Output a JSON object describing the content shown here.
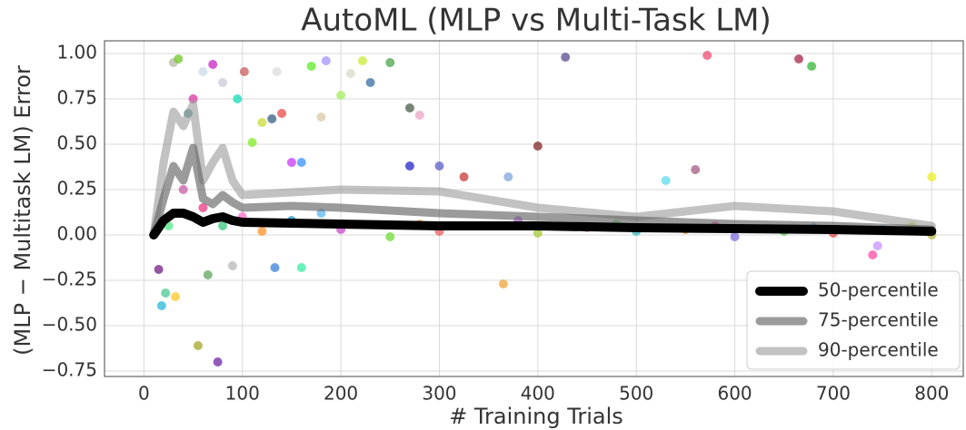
{
  "chart_data": {
    "type": "line",
    "title": "AutoML (MLP vs Multi-Task LM)",
    "xlabel": "# Training Trials",
    "ylabel": "(MLP − Multitask LM) Error",
    "xlim": [
      -40,
      832
    ],
    "ylim": [
      -0.78,
      1.07
    ],
    "xticks": [
      0,
      100,
      200,
      300,
      400,
      500,
      600,
      700,
      800
    ],
    "yticks": [
      {
        "value": 1,
        "label": "1.00"
      },
      {
        "value": 0.75,
        "label": "0.75"
      },
      {
        "value": 0.5,
        "label": "0.50"
      },
      {
        "value": 0.25,
        "label": "0.25"
      },
      {
        "value": 0,
        "label": "0.00"
      },
      {
        "value": -0.25,
        "label": "−0.25"
      },
      {
        "value": -0.5,
        "label": "−0.50"
      },
      {
        "value": -0.75,
        "label": "−0.75"
      }
    ],
    "grid": true,
    "legend": "lower right",
    "points": {
      "x": [
        15,
        18,
        22,
        32,
        30,
        35,
        45,
        50,
        55,
        60,
        70,
        75,
        80,
        95,
        102,
        120,
        130,
        135,
        140,
        150,
        160,
        170,
        180,
        185,
        200,
        210,
        222,
        230,
        250,
        270,
        280,
        270,
        300,
        325,
        370,
        365,
        400,
        428,
        530,
        560,
        572,
        665,
        678,
        800,
        740,
        745,
        133,
        160,
        110,
        90,
        65,
        60,
        80,
        120,
        150,
        200,
        250,
        300,
        350,
        400,
        450,
        500,
        550,
        600,
        650,
        700,
        750,
        800,
        40,
        25,
        100,
        180,
        280,
        380,
        480,
        580,
        680,
        780
      ],
      "y": [
        -0.19,
        -0.39,
        -0.32,
        -0.34,
        0.95,
        0.97,
        0.67,
        0.75,
        -0.61,
        0.9,
        0.94,
        -0.7,
        0.84,
        0.75,
        0.9,
        0.62,
        0.64,
        0.9,
        0.67,
        0.4,
        0.4,
        0.93,
        0.65,
        0.96,
        0.77,
        0.89,
        0.96,
        0.84,
        0.95,
        0.7,
        0.66,
        0.38,
        0.38,
        0.32,
        0.32,
        -0.27,
        0.49,
        0.98,
        0.3,
        0.36,
        0.99,
        0.97,
        0.93,
        0.32,
        -0.11,
        -0.06,
        -0.18,
        -0.18,
        0.51,
        -0.17,
        -0.22,
        0.15,
        0.05,
        0.02,
        0.08,
        0.03,
        -0.01,
        0.02,
        0.05,
        0.01,
        0.04,
        0.02,
        0.03,
        -0.01,
        0.02,
        0.01,
        0.03,
        0,
        0.25,
        0.05,
        0.1,
        0.12,
        0.06,
        0.08,
        0.06,
        0.05,
        0.04,
        0.05
      ],
      "colors": [
        "#7a2a8a",
        "#33bbdd",
        "#55cc99",
        "#ffcc33",
        "#bbbbaa",
        "#77cc33",
        "#559999",
        "#dd44aa",
        "#aaaa33",
        "#ccddee",
        "#cc33cc",
        "#7733aa",
        "#ccccdd",
        "#22ddbb",
        "#cc6666",
        "#ccdd44",
        "#446688",
        "#dddddd",
        "#ee5555",
        "#cc44ff",
        "#4499ff",
        "#66ee33",
        "#ddccaa",
        "#aa99ff",
        "#aaee66",
        "#ddddcc",
        "#ccee44",
        "#4477aa",
        "#55aa55",
        "#556655",
        "#eeaacc",
        "#3333cc",
        "#6666cc",
        "#cc4444",
        "#88aadd",
        "#eeaa44",
        "#883333",
        "#665599",
        "#66ddee",
        "#aa6688",
        "#ee5577",
        "#aa3355",
        "#44bb44",
        "#eeee33",
        "#ff55aa",
        "#cc99ff",
        "#4488dd",
        "#44eeaa",
        "#88ee33",
        "#bbbbbb",
        "#66aa66",
        "#ee4488",
        "#44cc88",
        "#ff9933",
        "#3399cc",
        "#cc55cc",
        "#77dd44",
        "#ee6666",
        "#5599ee",
        "#aacc44",
        "#dd77aa",
        "#44bbbb",
        "#ee9944",
        "#8877dd",
        "#66cc66",
        "#dd5555",
        "#55aadd",
        "#bbbb55",
        "#cc66aa",
        "#55ee88",
        "#ff77cc",
        "#66bbee",
        "#eeaa55",
        "#bb77ee",
        "#77ee77",
        "#ee66aa",
        "#66aaee",
        "#dddd66"
      ]
    },
    "series": [
      {
        "name": "50-percentile",
        "color": "#000000",
        "x": [
          10,
          20,
          30,
          40,
          50,
          60,
          70,
          80,
          90,
          100,
          200,
          300,
          400,
          500,
          600,
          700,
          800
        ],
        "values": [
          0,
          0.08,
          0.12,
          0.12,
          0.1,
          0.07,
          0.09,
          0.1,
          0.08,
          0.07,
          0.06,
          0.05,
          0.05,
          0.04,
          0.035,
          0.03,
          0.02
        ]
      },
      {
        "name": "75-percentile",
        "color": "#666666",
        "x": [
          10,
          20,
          30,
          40,
          50,
          60,
          70,
          80,
          90,
          100,
          150,
          200,
          300,
          400,
          500,
          600,
          700,
          800
        ],
        "values": [
          0,
          0.2,
          0.38,
          0.3,
          0.48,
          0.2,
          0.17,
          0.22,
          0.18,
          0.15,
          0.16,
          0.15,
          0.12,
          0.1,
          0.08,
          0.06,
          0.05,
          0.03
        ]
      },
      {
        "name": "90-percentile",
        "color": "#999999",
        "x": [
          10,
          20,
          30,
          40,
          50,
          60,
          70,
          80,
          90,
          100,
          200,
          300,
          400,
          500,
          600,
          700,
          800
        ],
        "values": [
          0,
          0.4,
          0.68,
          0.6,
          0.72,
          0.3,
          0.4,
          0.48,
          0.3,
          0.22,
          0.25,
          0.24,
          0.15,
          0.1,
          0.16,
          0.13,
          0.05
        ]
      }
    ]
  }
}
